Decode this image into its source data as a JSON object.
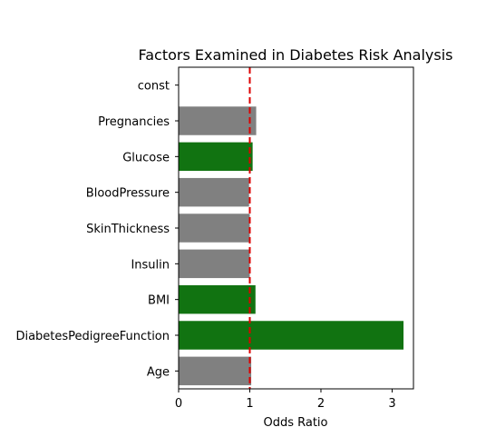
{
  "chart_data": {
    "type": "bar",
    "orientation": "horizontal",
    "title": "Factors Examined in Diabetes Risk Analysis",
    "xlabel": "Odds Ratio",
    "ylabel": "",
    "xlim": [
      0,
      3.3
    ],
    "xticks": [
      "0",
      "1",
      "2",
      "3"
    ],
    "categories": [
      "const",
      "Pregnancies",
      "Glucose",
      "BloodPressure",
      "SkinThickness",
      "Insulin",
      "BMI",
      "DiabetesPedigreeFunction",
      "Age"
    ],
    "values": [
      0.0,
      1.09,
      1.04,
      0.99,
      1.0,
      1.0,
      1.08,
      3.16,
      1.02
    ],
    "bar_colors": [
      "#808080",
      "#808080",
      "#117311",
      "#808080",
      "#808080",
      "#808080",
      "#117311",
      "#117311",
      "#808080"
    ],
    "reference_line": {
      "x": 1,
      "color": "#dd0000",
      "style": "dashed"
    },
    "grid": false,
    "legend": "none"
  }
}
